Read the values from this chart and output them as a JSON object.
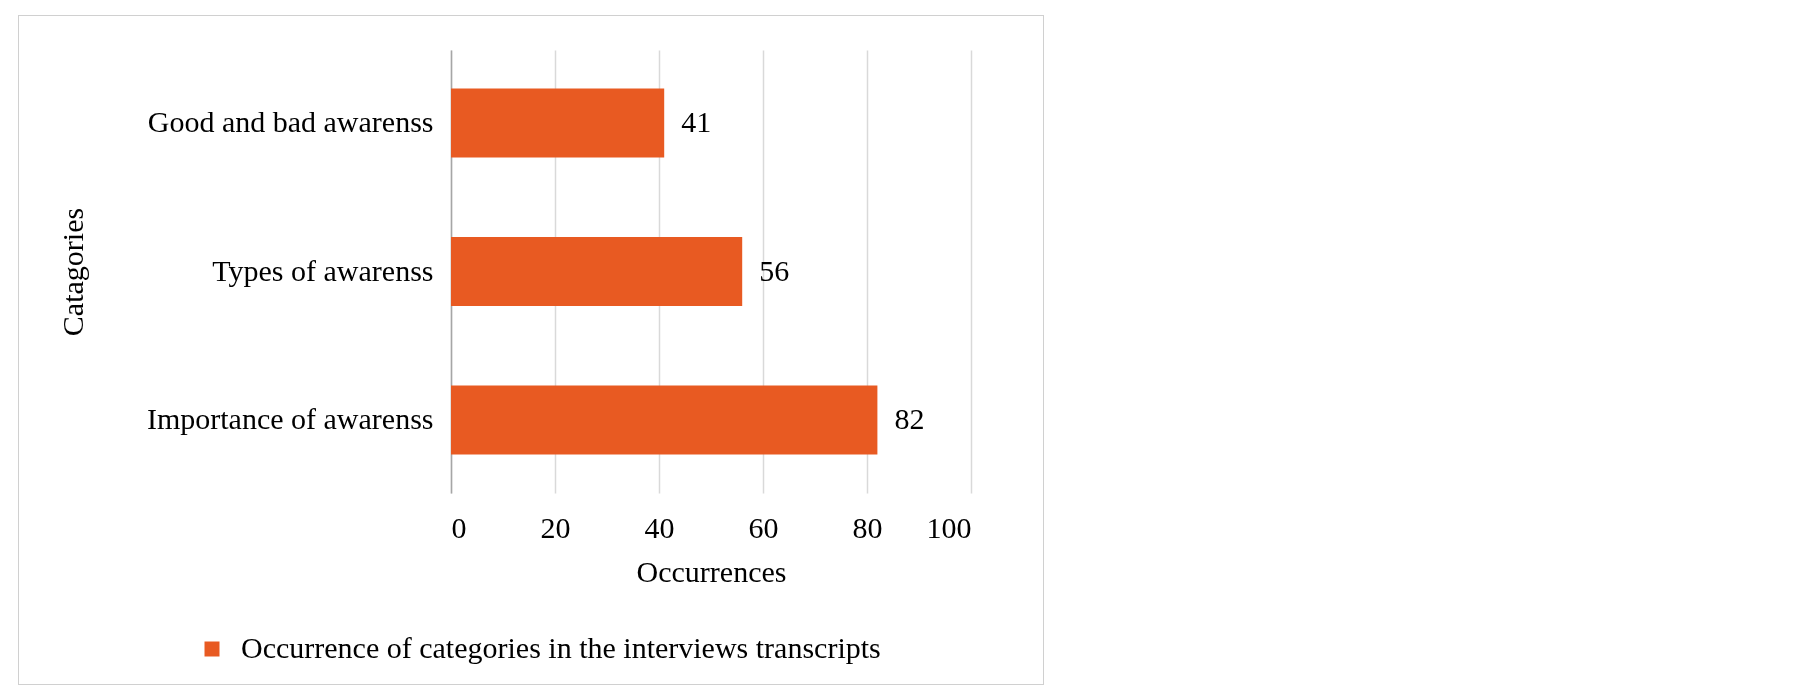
{
  "chart_data": {
    "type": "bar",
    "orientation": "horizontal",
    "xlabel": "Occurrences",
    "ylabel": "Catagories",
    "categories": [
      "Good and bad awarenss",
      "Types of awarenss",
      "Importance of awarenss"
    ],
    "series": [
      {
        "name": "Occurrence of categories in the interviews transcripts",
        "color": "#e85a22",
        "values": [
          41,
          56,
          82
        ]
      }
    ],
    "xlim": [
      0,
      100
    ],
    "xticks": [
      0,
      20,
      40,
      60,
      80,
      100
    ],
    "grid": "x",
    "legend": "bottom",
    "data_labels": true
  }
}
